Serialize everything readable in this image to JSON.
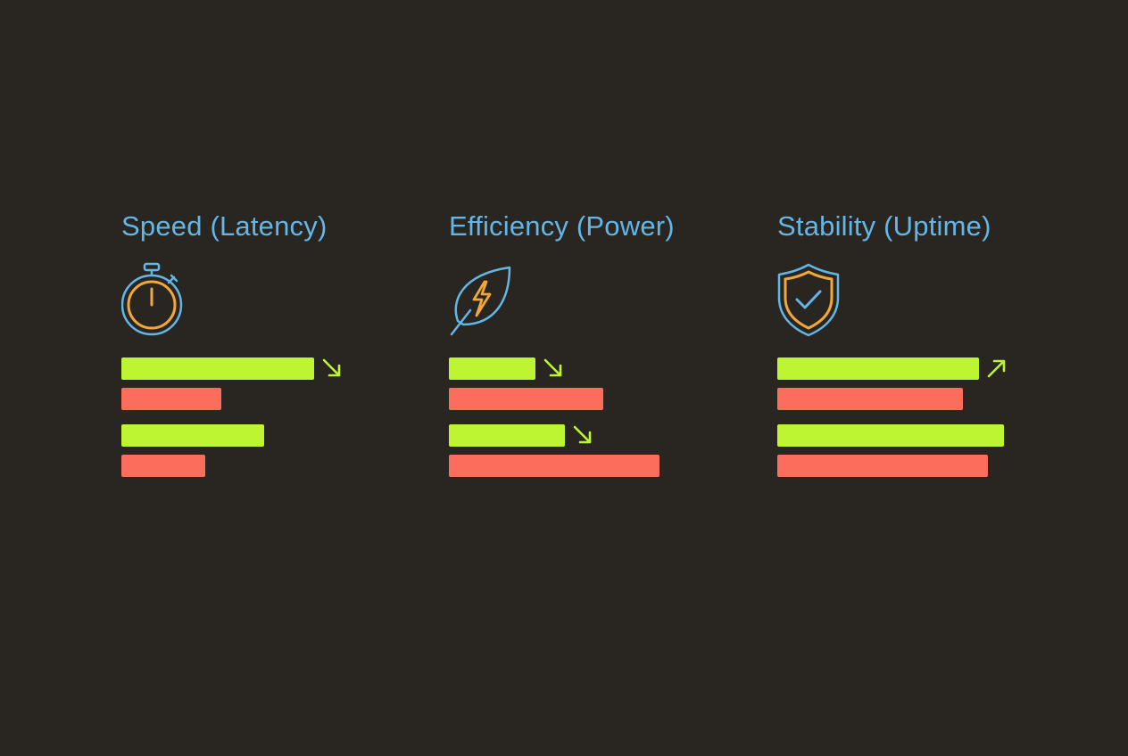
{
  "colors": {
    "background": "#292622",
    "title": "#63b6e6",
    "icon_outline": "#63b6e6",
    "icon_accent": "#f2a73b",
    "bar_green": "#bef532",
    "bar_red": "#fd6d5c",
    "arrow": "#bef532"
  },
  "chart_data": [
    {
      "type": "bar",
      "orientation": "horizontal",
      "title": "Speed (Latency)",
      "icon": "stopwatch-icon",
      "axis_max": 100,
      "grid": false,
      "groups": [
        {
          "bars": [
            {
              "color": "green",
              "value": 85,
              "trend": "down"
            },
            {
              "color": "red",
              "value": 44,
              "trend": null
            }
          ]
        },
        {
          "bars": [
            {
              "color": "green",
              "value": 63,
              "trend": null
            },
            {
              "color": "red",
              "value": 37,
              "trend": null
            }
          ]
        }
      ]
    },
    {
      "type": "bar",
      "orientation": "horizontal",
      "title": "Efficiency (Power)",
      "icon": "leaf-lightning-icon",
      "axis_max": 100,
      "grid": false,
      "groups": [
        {
          "bars": [
            {
              "color": "green",
              "value": 38,
              "trend": "down"
            },
            {
              "color": "red",
              "value": 68,
              "trend": null
            }
          ]
        },
        {
          "bars": [
            {
              "color": "green",
              "value": 51,
              "trend": "down"
            },
            {
              "color": "red",
              "value": 93,
              "trend": null
            }
          ]
        }
      ]
    },
    {
      "type": "bar",
      "orientation": "horizontal",
      "title": "Stability (Uptime)",
      "icon": "shield-check-icon",
      "axis_max": 100,
      "grid": false,
      "groups": [
        {
          "bars": [
            {
              "color": "green",
              "value": 89,
              "trend": "up"
            },
            {
              "color": "red",
              "value": 82,
              "trend": null
            }
          ]
        },
        {
          "bars": [
            {
              "color": "green",
              "value": 100,
              "trend": null
            },
            {
              "color": "red",
              "value": 93,
              "trend": null
            }
          ]
        }
      ]
    }
  ]
}
